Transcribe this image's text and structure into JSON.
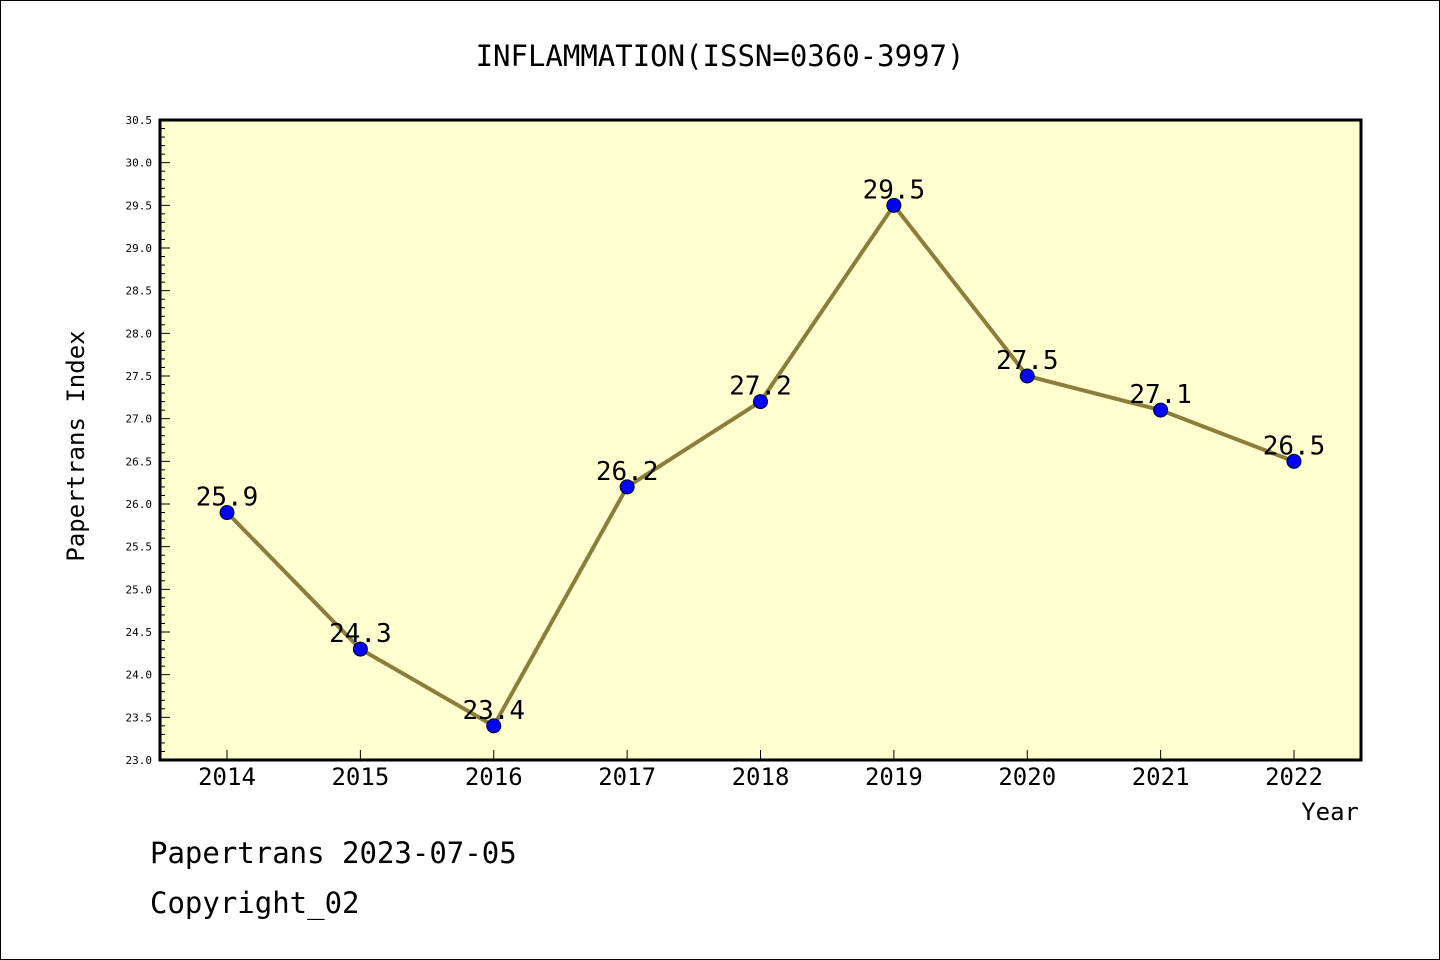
{
  "chart_data": {
    "type": "line",
    "title": "INFLAMMATION(ISSN=0360-3997)",
    "xlabel": "Year",
    "ylabel": "Papertrans Index",
    "categories": [
      "2014",
      "2015",
      "2016",
      "2017",
      "2018",
      "2019",
      "2020",
      "2021",
      "2022"
    ],
    "series": [
      {
        "values": [
          25.9,
          24.3,
          23.4,
          26.2,
          27.2,
          29.5,
          27.5,
          27.1,
          26.5
        ]
      }
    ],
    "data_labels": [
      "25.9",
      "24.3",
      "23.4",
      "26.2",
      "27.2",
      "29.5",
      "27.5",
      "27.1",
      "26.5"
    ],
    "ylim": [
      23.0,
      30.5
    ],
    "yticks": [
      "23.0",
      "23.5",
      "24.0",
      "24.5",
      "25.0",
      "25.5",
      "26.0",
      "26.5",
      "27.0",
      "27.5",
      "28.0",
      "28.5",
      "29.0",
      "29.5",
      "30.0",
      "30.5"
    ],
    "grid": false,
    "colors": {
      "plot_background": "#ffffd0",
      "line": "#8b7d3a",
      "marker": "#0000ff"
    }
  },
  "footer": {
    "date_line": "Papertrans 2023-07-05",
    "copyright": "Copyright_02"
  }
}
